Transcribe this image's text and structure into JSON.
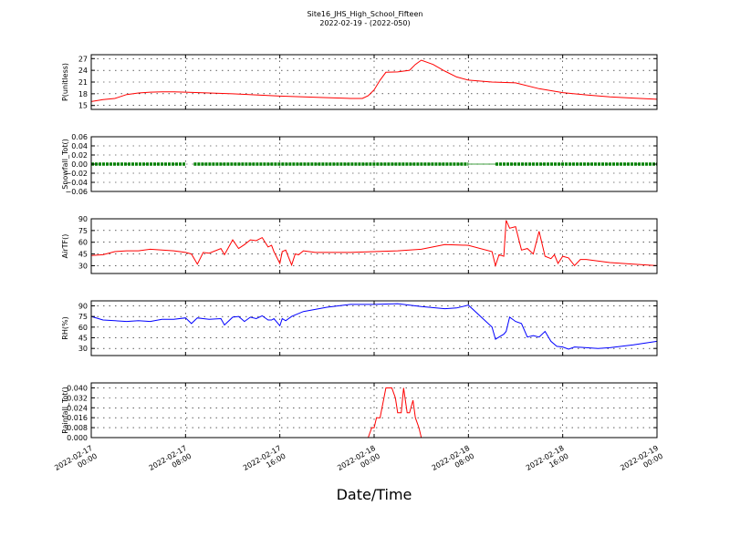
{
  "figure": {
    "title": "Site16_JHS_High_School_Fifteen",
    "subtitle": "2022-02-19 - (2022-050)",
    "xlabel": "Date/Time"
  },
  "chart_data": [
    {
      "type": "line",
      "ylabel": "P(unitless)",
      "color": "#ff0000",
      "ylim": [
        14,
        28
      ],
      "yticks": [
        15,
        18,
        21,
        24,
        27
      ],
      "ytick_labels": [
        "15",
        "18",
        "21",
        "24",
        "27"
      ],
      "xlim": [
        0,
        48
      ],
      "grid": true,
      "x": [
        0,
        1,
        2,
        3,
        4,
        5,
        6,
        7,
        8,
        10,
        12,
        14,
        16,
        18,
        20,
        22,
        23,
        23.5,
        24,
        24.5,
        25,
        26,
        27,
        27.5,
        28,
        29,
        30,
        31,
        32,
        34,
        36,
        38,
        40,
        42,
        44,
        46,
        48
      ],
      "y": [
        16.0,
        16.5,
        16.8,
        17.8,
        18.2,
        18.4,
        18.5,
        18.5,
        18.4,
        18.2,
        18.0,
        17.7,
        17.4,
        17.2,
        17.0,
        16.8,
        16.8,
        17.5,
        19.0,
        21.5,
        23.5,
        23.6,
        24.0,
        25.5,
        26.6,
        25.5,
        23.8,
        22.3,
        21.5,
        21.0,
        20.8,
        19.3,
        18.3,
        17.7,
        17.2,
        16.9,
        16.6
      ],
      "series": [
        {
          "name": "",
          "color": "#ff0000"
        }
      ]
    },
    {
      "type": "line",
      "ylabel": "Snowfall_Tot()",
      "color": "#008000",
      "ylim": [
        -0.06,
        0.06
      ],
      "yticks": [
        -0.06,
        -0.04,
        -0.02,
        0.0,
        0.02,
        0.04,
        0.06
      ],
      "ytick_labels": [
        "−0.06",
        "−0.04",
        "−0.02",
        "0.00",
        "0.02",
        "0.04",
        "0.06"
      ],
      "xlim": [
        0,
        48
      ],
      "grid": true,
      "segments": [
        [
          0,
          8
        ],
        [
          8.7,
          32
        ],
        [
          34.3,
          48
        ]
      ],
      "value": 0.0,
      "series": [
        {
          "name": "",
          "color": "#008000"
        }
      ]
    },
    {
      "type": "line",
      "ylabel": "AirTF()",
      "color": "#ff0000",
      "ylim": [
        20,
        90
      ],
      "yticks": [
        30,
        45,
        60,
        75,
        90
      ],
      "ytick_labels": [
        "30",
        "45",
        "60",
        "75",
        "90"
      ],
      "xlim": [
        0,
        48
      ],
      "grid": true,
      "x": [
        0,
        1,
        2,
        3,
        4,
        5,
        6,
        7,
        8,
        8.5,
        9,
        9.5,
        10,
        11,
        11.3,
        12,
        12.5,
        13,
        13.5,
        14,
        14.5,
        15,
        15.3,
        15.5,
        16,
        16.2,
        16.5,
        17,
        17.3,
        17.6,
        18,
        19,
        20,
        22,
        24,
        26,
        28,
        30,
        32,
        34,
        34.3,
        34.6,
        35,
        35.2,
        35.5,
        36,
        36.5,
        37,
        37.5,
        38,
        38.5,
        39,
        39.3,
        39.6,
        40,
        40.5,
        41,
        41.5,
        42,
        44,
        46,
        48
      ],
      "y": [
        43,
        44,
        48,
        49,
        49,
        51,
        50,
        49,
        47,
        45,
        32,
        47,
        46,
        52,
        44,
        63,
        52,
        57,
        63,
        62,
        66,
        54,
        56,
        48,
        33,
        48,
        50,
        31,
        45,
        44,
        49,
        47,
        47,
        47,
        48,
        49,
        51,
        57,
        56,
        48,
        30,
        44,
        42,
        88,
        78,
        80,
        50,
        52,
        45,
        74,
        42,
        39,
        44,
        33,
        42,
        40,
        30,
        38,
        38,
        34,
        32,
        30
      ],
      "series": [
        {
          "name": "",
          "color": "#ff0000"
        }
      ]
    },
    {
      "type": "line",
      "ylabel": "RH(%)",
      "color": "#0000ff",
      "ylim": [
        20,
        97
      ],
      "yticks": [
        30,
        45,
        60,
        75,
        90
      ],
      "ytick_labels": [
        "30",
        "45",
        "60",
        "75",
        "90"
      ],
      "xlim": [
        0,
        48
      ],
      "grid": true,
      "x": [
        0,
        1,
        2,
        3,
        4,
        5,
        6,
        7,
        8,
        8.5,
        9,
        9.5,
        10,
        11,
        11.3,
        12,
        12.5,
        13,
        13.5,
        14,
        14.5,
        15,
        15.3,
        15.5,
        16,
        16.2,
        16.5,
        17,
        18,
        19,
        20,
        22,
        24,
        26,
        28,
        30,
        31,
        32,
        34,
        34.3,
        34.6,
        35,
        35.2,
        35.5,
        36,
        36.5,
        37,
        37.5,
        38,
        38.5,
        39,
        39.5,
        40,
        40.5,
        41,
        42,
        43,
        44,
        46,
        48
      ],
      "y": [
        75,
        70,
        69,
        68,
        69,
        68,
        71,
        71,
        73,
        65,
        73,
        72,
        71,
        72,
        63,
        74,
        75,
        68,
        74,
        72,
        76,
        70,
        70,
        72,
        62,
        72,
        69,
        75,
        82,
        85,
        88,
        92,
        92,
        93,
        89,
        86,
        87,
        91,
        60,
        43,
        46,
        50,
        54,
        74,
        68,
        65,
        46,
        48,
        46,
        54,
        40,
        33,
        32,
        29,
        32,
        31,
        30,
        31,
        35,
        40
      ],
      "series": [
        {
          "name": "",
          "color": "#0000ff"
        }
      ]
    },
    {
      "type": "line",
      "ylabel": "Rainfall_Tot()",
      "color": "#ff0000",
      "ylim": [
        0.0,
        0.044
      ],
      "yticks": [
        0.0,
        0.008,
        0.016,
        0.024,
        0.032,
        0.04
      ],
      "ytick_labels": [
        "0.000",
        "0.008",
        "0.016",
        "0.024",
        "0.032",
        "0.040"
      ],
      "xlim": [
        0,
        48
      ],
      "grid": true,
      "x": [
        0,
        10,
        20,
        23.5,
        23.8,
        24,
        24.2,
        24.5,
        25,
        25.3,
        25.5,
        25.8,
        26,
        26.3,
        26.5,
        26.8,
        27,
        27.3,
        27.5,
        27.8,
        28,
        30,
        40,
        48
      ],
      "y": [
        0,
        0,
        0,
        0,
        0.008,
        0.008,
        0.016,
        0.016,
        0.04,
        0.04,
        0.04,
        0.032,
        0.02,
        0.02,
        0.04,
        0.02,
        0.02,
        0.03,
        0.016,
        0.008,
        0,
        0,
        0,
        0
      ],
      "series": [
        {
          "name": "",
          "color": "#ff0000"
        }
      ]
    }
  ],
  "xaxis": {
    "ticks": [
      0,
      8,
      16,
      24,
      32,
      40,
      48
    ],
    "labels": [
      [
        "2022-02-17",
        "00:00"
      ],
      [
        "2022-02-17",
        "08:00"
      ],
      [
        "2022-02-17",
        "16:00"
      ],
      [
        "2022-02-18",
        "00:00"
      ],
      [
        "2022-02-18",
        "08:00"
      ],
      [
        "2022-02-18",
        "16:00"
      ],
      [
        "2022-02-19",
        "00:00"
      ]
    ]
  }
}
